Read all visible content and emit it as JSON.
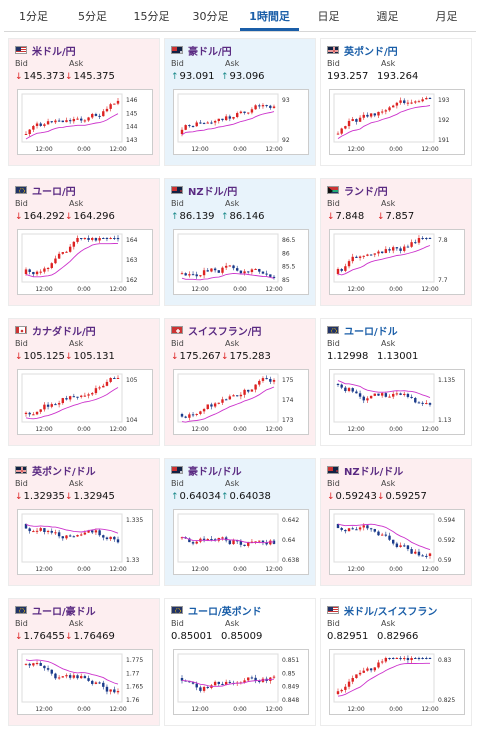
{
  "tabs": [
    "1分足",
    "5分足",
    "15分足",
    "30分足",
    "1時間足",
    "日足",
    "週足",
    "月足"
  ],
  "active_tab_index": 4,
  "colors": {
    "up": "#1a8a8a",
    "down": "#dd2222",
    "ma": "#cc33cc",
    "candle_up": "#dd2222",
    "candle_down": "#1a3a8a"
  },
  "labels": {
    "bid": "Bid",
    "ask": "Ask"
  },
  "cards": [
    {
      "pair": "米ドル/円",
      "flag": "us",
      "bg": "pink",
      "bid": "145.373",
      "ask": "145.375",
      "dir": "down",
      "trend": "up",
      "y_ticks": [
        "146",
        "145",
        "144",
        "143"
      ],
      "x_ticks": [
        "12:00",
        "0:00",
        "12:00"
      ]
    },
    {
      "pair": "豪ドル/円",
      "flag": "au",
      "bg": "blue",
      "bid": "93.091",
      "ask": "93.096",
      "dir": "up",
      "trend": "up",
      "y_ticks": [
        "93",
        "92"
      ],
      "x_ticks": [
        "12:00",
        "0:00",
        "12:00"
      ]
    },
    {
      "pair": "英ポンド/円",
      "flag": "gb",
      "bg": "white",
      "bid": "193.257",
      "ask": "193.264",
      "dir": "none",
      "trend": "up",
      "y_ticks": [
        "193",
        "192",
        "191"
      ],
      "x_ticks": [
        "12:00",
        "0:00",
        "12:00"
      ]
    },
    {
      "pair": "ユーロ/円",
      "flag": "eu",
      "bg": "pink",
      "bid": "164.292",
      "ask": "164.296",
      "dir": "down",
      "trend": "up",
      "y_ticks": [
        "164",
        "163",
        "162"
      ],
      "x_ticks": [
        "12:00",
        "0:00",
        "12:00"
      ]
    },
    {
      "pair": "NZドル/円",
      "flag": "nz",
      "bg": "blue",
      "bid": "86.139",
      "ask": "86.146",
      "dir": "up",
      "trend": "up",
      "y_ticks": [
        "86.5",
        "86",
        "85.5",
        "85"
      ],
      "x_ticks": [
        "12:00",
        "0:00",
        "12:00"
      ]
    },
    {
      "pair": "ランド/円",
      "flag": "za",
      "bg": "pink",
      "bid": "7.848",
      "ask": "7.857",
      "dir": "down",
      "trend": "up",
      "y_ticks": [
        "7.8",
        "7.7"
      ],
      "x_ticks": [
        "12:00",
        "0:00",
        "12:00"
      ]
    },
    {
      "pair": "カナダドル/円",
      "flag": "ca",
      "bg": "pink",
      "bid": "105.125",
      "ask": "105.131",
      "dir": "down",
      "trend": "up",
      "y_ticks": [
        "105",
        "104"
      ],
      "x_ticks": [
        "12:00",
        "0:00",
        "12:00"
      ]
    },
    {
      "pair": "スイスフラン/円",
      "flag": "ch",
      "bg": "pink",
      "bid": "175.267",
      "ask": "175.283",
      "dir": "down",
      "trend": "up",
      "y_ticks": [
        "175",
        "174",
        "173"
      ],
      "x_ticks": [
        "12:00",
        "0:00",
        "12:00"
      ]
    },
    {
      "pair": "ユーロ/ドル",
      "flag": "eu",
      "bg": "white",
      "bid": "1.12998",
      "ask": "1.13001",
      "dir": "none",
      "trend": "down",
      "y_ticks": [
        "1.135",
        "1.13"
      ],
      "x_ticks": [
        "12:00",
        "0:00",
        "12:00"
      ]
    },
    {
      "pair": "英ポンド/ドル",
      "flag": "gb",
      "bg": "pink",
      "bid": "1.32935",
      "ask": "1.32945",
      "dir": "down",
      "trend": "down",
      "y_ticks": [
        "1.335",
        "1.33"
      ],
      "x_ticks": [
        "12:00",
        "0:00",
        "12:00"
      ]
    },
    {
      "pair": "豪ドル/ドル",
      "flag": "au",
      "bg": "blue",
      "bid": "0.64034",
      "ask": "0.64038",
      "dir": "up",
      "trend": "flat",
      "y_ticks": [
        "0.642",
        "0.64",
        "0.638"
      ],
      "x_ticks": [
        "12:00",
        "0:00",
        "12:00"
      ]
    },
    {
      "pair": "NZドル/ドル",
      "flag": "nz",
      "bg": "pink",
      "bid": "0.59243",
      "ask": "0.59257",
      "dir": "down",
      "trend": "down",
      "y_ticks": [
        "0.594",
        "0.592",
        "0.59"
      ],
      "x_ticks": [
        "12:00",
        "0:00",
        "12:00"
      ]
    },
    {
      "pair": "ユーロ/豪ドル",
      "flag": "eu",
      "bg": "pink",
      "bid": "1.76455",
      "ask": "1.76469",
      "dir": "down",
      "trend": "down",
      "y_ticks": [
        "1.775",
        "1.77",
        "1.765",
        "1.76"
      ],
      "x_ticks": [
        "12:00",
        "0:00",
        "12:00"
      ]
    },
    {
      "pair": "ユーロ/英ポンド",
      "flag": "eu",
      "bg": "white",
      "bid": "0.85001",
      "ask": "0.85009",
      "dir": "none",
      "trend": "flat",
      "y_ticks": [
        "0.851",
        "0.85",
        "0.849",
        "0.848"
      ],
      "x_ticks": [
        "12:00",
        "0:00",
        "12:00"
      ]
    },
    {
      "pair": "米ドル/スイスフラン",
      "flag": "us",
      "bg": "white",
      "bid": "0.82951",
      "ask": "0.82966",
      "dir": "none",
      "trend": "up",
      "y_ticks": [
        "0.83",
        "0.825"
      ],
      "x_ticks": [
        "12:00",
        "0:00",
        "12:00"
      ]
    }
  ]
}
